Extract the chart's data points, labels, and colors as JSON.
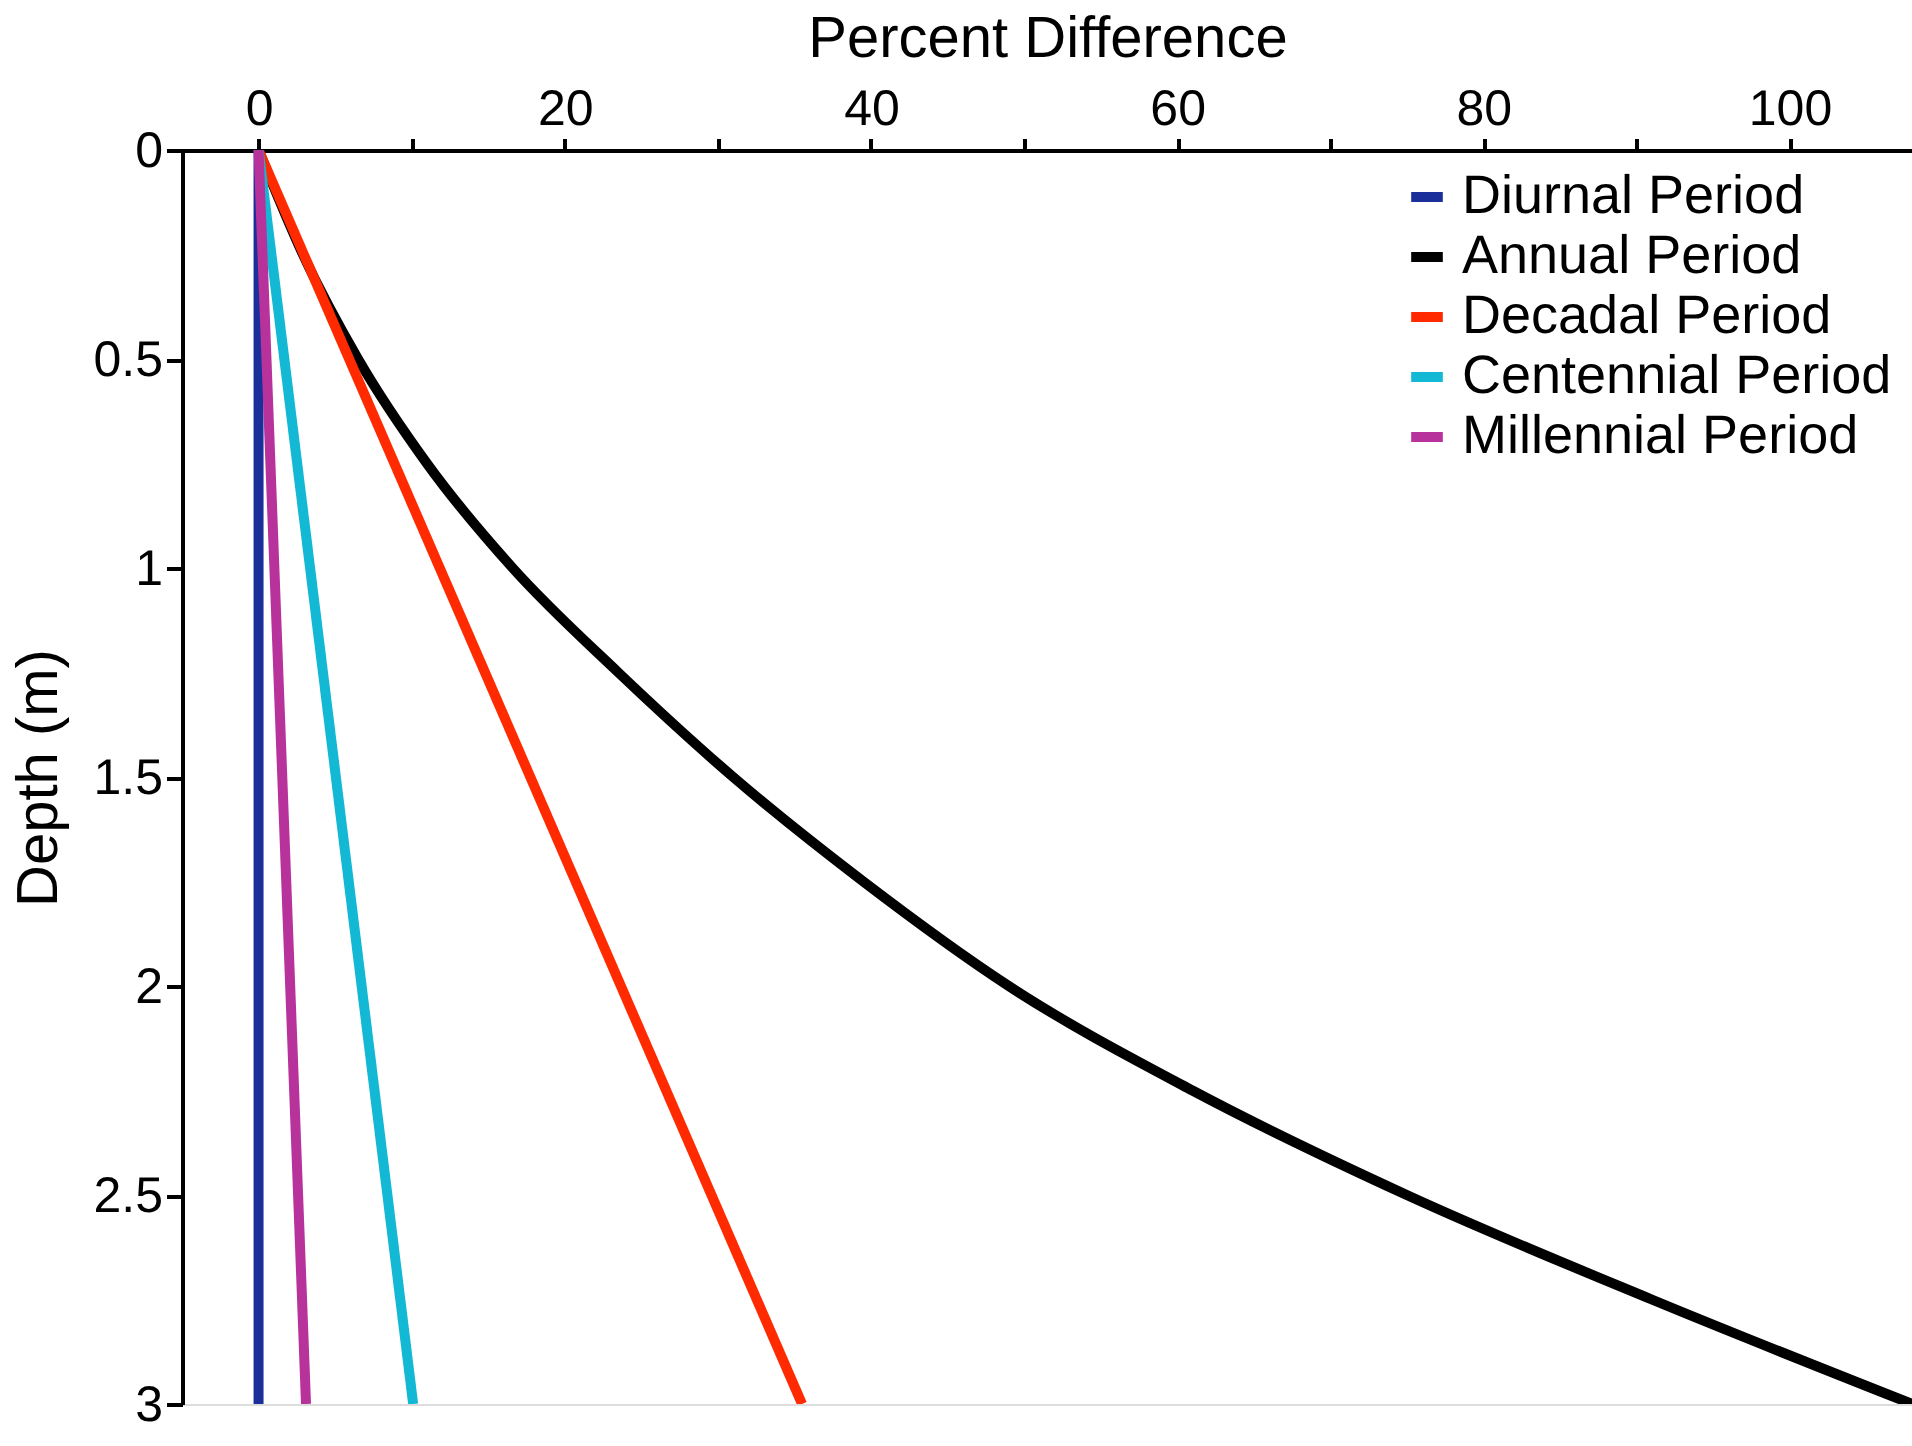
{
  "chart_data": {
    "type": "line",
    "xlabel": "Percent Difference",
    "ylabel": "Depth (m)",
    "xlim": [
      -5,
      108
    ],
    "xticks": [
      0,
      {
        "value": 10,
        "label": null
      },
      20,
      {
        "value": 30,
        "label": null
      },
      40,
      {
        "value": 50,
        "label": null
      },
      60,
      {
        "value": 70,
        "label": null
      },
      80,
      {
        "value": 90,
        "label": null
      },
      100
    ],
    "ylim": [
      3,
      0
    ],
    "yticks": [
      0,
      0.5,
      1,
      1.5,
      2,
      2.5,
      3
    ],
    "grid": false,
    "legend": "top right",
    "marker": "none",
    "line_style": "solid",
    "series": [
      {
        "name": "Diurnal Period",
        "color": "#1a2f9a",
        "x": [
          0,
          0
        ],
        "values": [
          0,
          3
        ]
      },
      {
        "name": "Annual Period",
        "color": "#000000",
        "x": [
          0,
          2.9,
          6.5,
          11,
          16.6,
          23.5,
          31,
          39.5,
          49,
          61,
          75,
          91,
          108
        ],
        "values": [
          0,
          0.25,
          0.5,
          0.75,
          1,
          1.25,
          1.5,
          1.75,
          2,
          2.25,
          2.5,
          2.75,
          3
        ]
      },
      {
        "name": "Decadal Period",
        "color": "#ff2a00",
        "x": [
          0,
          35.5
        ],
        "values": [
          0,
          3
        ]
      },
      {
        "name": "Centennial Period",
        "color": "#12b8d4",
        "x": [
          0,
          10.1
        ],
        "values": [
          0,
          3
        ]
      },
      {
        "name": "Millennial Period",
        "color": "#b8329c",
        "x": [
          0,
          3.1
        ],
        "values": [
          0,
          3
        ]
      }
    ]
  }
}
